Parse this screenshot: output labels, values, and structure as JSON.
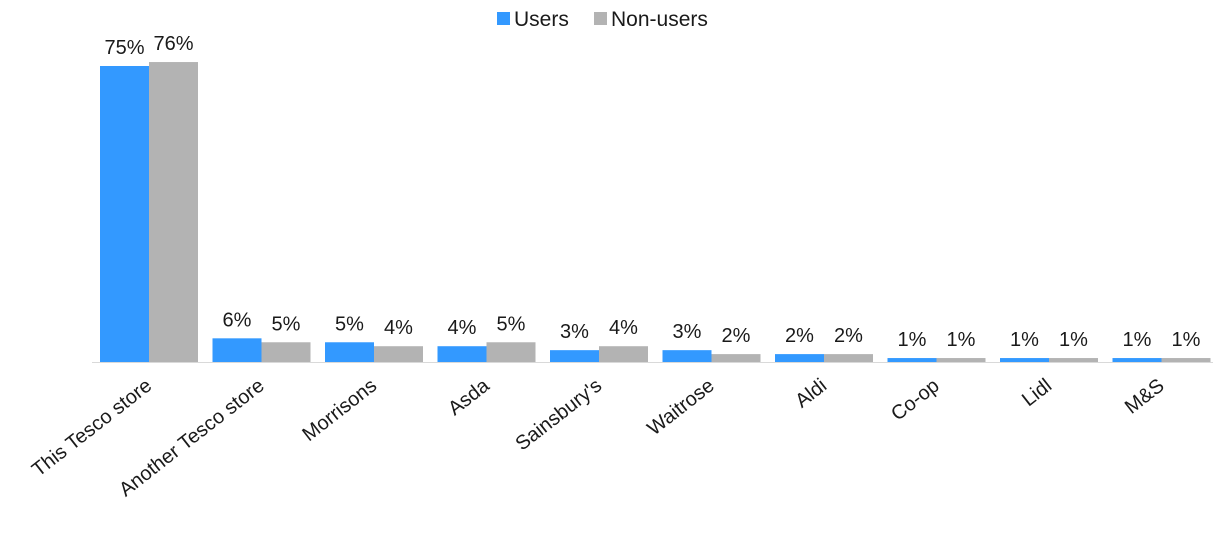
{
  "chart_data": {
    "type": "bar",
    "title": "",
    "xlabel": "",
    "ylabel": "",
    "ylim": [
      0,
      80
    ],
    "grid": false,
    "legend_position": "top-center",
    "categories": [
      "This Tesco store",
      "Another Tesco store",
      "Morrisons",
      "Asda",
      "Sainsbury's",
      "Waitrose",
      "Aldi",
      "Co-op",
      "Lidl",
      "M&S"
    ],
    "series": [
      {
        "name": "Users",
        "color": "#3399ff",
        "values": [
          75,
          6,
          5,
          4,
          3,
          3,
          2,
          1,
          1,
          1
        ],
        "labels": [
          "75%",
          "6%",
          "5%",
          "4%",
          "3%",
          "3%",
          "2%",
          "1%",
          "1%",
          "1%"
        ]
      },
      {
        "name": "Non-users",
        "color": "#b3b3b3",
        "values": [
          76,
          5,
          4,
          5,
          4,
          2,
          2,
          1,
          1,
          1
        ],
        "labels": [
          "76%",
          "5%",
          "4%",
          "5%",
          "4%",
          "2%",
          "2%",
          "1%",
          "1%",
          "1%"
        ]
      }
    ]
  }
}
